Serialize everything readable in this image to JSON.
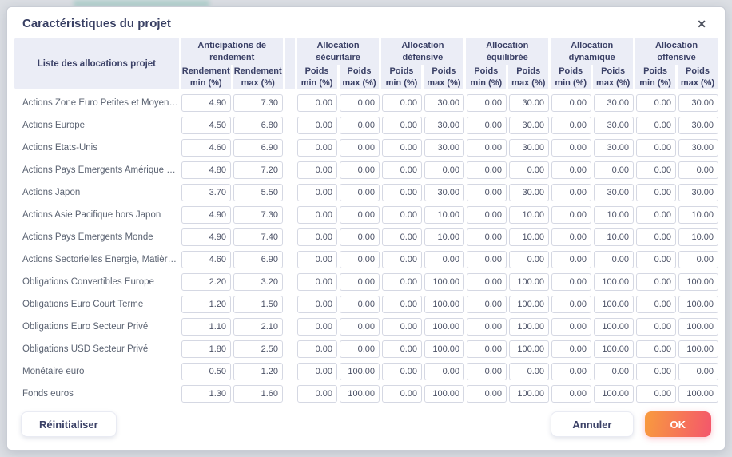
{
  "dialog": {
    "title": "Caractéristiques du projet",
    "close_icon": "✕"
  },
  "colors": {
    "header_bg": "#ebedf6",
    "title_color": "#383f63",
    "accent_gradient_start": "#f89b3e",
    "accent_gradient_end": "#f4566c"
  },
  "table": {
    "label_header": "Liste des allocations projet",
    "groups": [
      {
        "key": "rendement",
        "title": "Anticipations de rendement",
        "col_min": "Rendement min (%)",
        "col_max": "Rendement max (%)"
      },
      {
        "key": "securitaire",
        "title": "Allocation sécuritaire",
        "col_min": "Poids min (%)",
        "col_max": "Poids max (%)"
      },
      {
        "key": "defensive",
        "title": "Allocation défensive",
        "col_min": "Poids min (%)",
        "col_max": "Poids max (%)"
      },
      {
        "key": "equilibree",
        "title": "Allocation équilibrée",
        "col_min": "Poids min (%)",
        "col_max": "Poids max (%)"
      },
      {
        "key": "dynamique",
        "title": "Allocation dynamique",
        "col_min": "Poids min (%)",
        "col_max": "Poids max (%)"
      },
      {
        "key": "offensive",
        "title": "Allocation offensive",
        "col_min": "Poids min (%)",
        "col_max": "Poids max (%)"
      }
    ],
    "column_keys": [
      "rendement-min",
      "rendement-max",
      "securitaire-poids-min",
      "securitaire-poids-max",
      "defensive-poids-min",
      "defensive-poids-max",
      "equilibree-poids-min",
      "equilibree-poids-max",
      "dynamique-poids-min",
      "dynamique-poids-max",
      "offensive-poids-min",
      "offensive-poids-max"
    ],
    "rows": [
      {
        "label": "Actions Zone Euro Petites et Moyennes Ca…",
        "values": [
          "4.90",
          "7.30",
          "0.00",
          "0.00",
          "0.00",
          "30.00",
          "0.00",
          "30.00",
          "0.00",
          "30.00",
          "0.00",
          "30.00"
        ]
      },
      {
        "label": "Actions Europe",
        "values": [
          "4.50",
          "6.80",
          "0.00",
          "0.00",
          "0.00",
          "30.00",
          "0.00",
          "30.00",
          "0.00",
          "30.00",
          "0.00",
          "30.00"
        ]
      },
      {
        "label": "Actions Etats-Unis",
        "values": [
          "4.60",
          "6.90",
          "0.00",
          "0.00",
          "0.00",
          "30.00",
          "0.00",
          "30.00",
          "0.00",
          "30.00",
          "0.00",
          "30.00"
        ]
      },
      {
        "label": "Actions Pays Emergents Amérique du Sud",
        "values": [
          "4.80",
          "7.20",
          "0.00",
          "0.00",
          "0.00",
          "0.00",
          "0.00",
          "0.00",
          "0.00",
          "0.00",
          "0.00",
          "0.00"
        ]
      },
      {
        "label": "Actions Japon",
        "values": [
          "3.70",
          "5.50",
          "0.00",
          "0.00",
          "0.00",
          "30.00",
          "0.00",
          "30.00",
          "0.00",
          "30.00",
          "0.00",
          "30.00"
        ]
      },
      {
        "label": "Actions Asie Pacifique hors Japon",
        "values": [
          "4.90",
          "7.30",
          "0.00",
          "0.00",
          "0.00",
          "10.00",
          "0.00",
          "10.00",
          "0.00",
          "10.00",
          "0.00",
          "10.00"
        ]
      },
      {
        "label": "Actions Pays Emergents Monde",
        "values": [
          "4.90",
          "7.40",
          "0.00",
          "0.00",
          "0.00",
          "10.00",
          "0.00",
          "10.00",
          "0.00",
          "10.00",
          "0.00",
          "10.00"
        ]
      },
      {
        "label": "Actions Sectorielles Energie, Matières Pre…",
        "values": [
          "4.60",
          "6.90",
          "0.00",
          "0.00",
          "0.00",
          "0.00",
          "0.00",
          "0.00",
          "0.00",
          "0.00",
          "0.00",
          "0.00"
        ]
      },
      {
        "label": "Obligations Convertibles Europe",
        "values": [
          "2.20",
          "3.20",
          "0.00",
          "0.00",
          "0.00",
          "100.00",
          "0.00",
          "100.00",
          "0.00",
          "100.00",
          "0.00",
          "100.00"
        ]
      },
      {
        "label": "Obligations Euro Court Terme",
        "values": [
          "1.20",
          "1.50",
          "0.00",
          "0.00",
          "0.00",
          "100.00",
          "0.00",
          "100.00",
          "0.00",
          "100.00",
          "0.00",
          "100.00"
        ]
      },
      {
        "label": "Obligations Euro Secteur Privé",
        "values": [
          "1.10",
          "2.10",
          "0.00",
          "0.00",
          "0.00",
          "100.00",
          "0.00",
          "100.00",
          "0.00",
          "100.00",
          "0.00",
          "100.00"
        ]
      },
      {
        "label": "Obligations USD Secteur Privé",
        "values": [
          "1.80",
          "2.50",
          "0.00",
          "0.00",
          "0.00",
          "100.00",
          "0.00",
          "100.00",
          "0.00",
          "100.00",
          "0.00",
          "100.00"
        ]
      },
      {
        "label": "Monétaire euro",
        "values": [
          "0.50",
          "1.20",
          "0.00",
          "100.00",
          "0.00",
          "0.00",
          "0.00",
          "0.00",
          "0.00",
          "0.00",
          "0.00",
          "0.00"
        ]
      },
      {
        "label": "Fonds euros",
        "values": [
          "1.30",
          "1.60",
          "0.00",
          "100.00",
          "0.00",
          "100.00",
          "0.00",
          "100.00",
          "0.00",
          "100.00",
          "0.00",
          "100.00"
        ]
      }
    ]
  },
  "footer": {
    "reset_label": "Réinitialiser",
    "cancel_label": "Annuler",
    "ok_label": "OK"
  }
}
